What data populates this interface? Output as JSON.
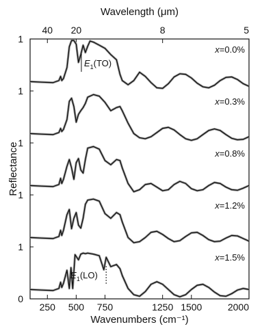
{
  "chart_data": {
    "type": "line",
    "title": "",
    "xlabel": "Wavenumbers (cm⁻¹)",
    "top_xlabel": "Wavelength (μm)",
    "ylabel": "Reflectance",
    "xlim": [
      100,
      2000
    ],
    "x_ticks": [
      250,
      500,
      750,
      1250,
      1500,
      2000
    ],
    "x_tick_labels": [
      "250",
      "500",
      "750",
      "1250",
      "1500",
      "2000"
    ],
    "top_ticks": [
      40,
      20,
      8,
      5
    ],
    "top_tick_labels": [
      "40",
      "20",
      "8",
      "5"
    ],
    "y_tick_labels": [
      "1",
      "1",
      "1",
      "1",
      "1",
      "0"
    ],
    "grid": false,
    "panels": [
      {
        "x_label": "x",
        "x_value": "=0.0%",
        "offset": 4,
        "x": [
          100,
          200,
          300,
          350,
          365,
          375,
          390,
          420,
          440,
          460,
          480,
          500,
          520,
          540,
          560,
          580,
          600,
          620,
          650,
          700,
          750,
          800,
          850,
          880,
          900,
          950,
          1000,
          1050,
          1100,
          1150,
          1200,
          1250,
          1300,
          1350,
          1400,
          1450,
          1500,
          1550,
          1600,
          1650,
          1700,
          1750,
          1800,
          1850,
          1900,
          1950,
          2000
        ],
        "values": [
          0.18,
          0.17,
          0.16,
          0.2,
          0.28,
          0.2,
          0.24,
          0.45,
          0.85,
          0.97,
          0.97,
          0.9,
          0.55,
          0.7,
          0.88,
          0.74,
          0.86,
          0.96,
          0.94,
          0.88,
          0.82,
          0.7,
          0.6,
          0.32,
          0.2,
          0.12,
          0.2,
          0.36,
          0.28,
          0.16,
          0.06,
          0.05,
          0.14,
          0.27,
          0.33,
          0.32,
          0.25,
          0.15,
          0.08,
          0.06,
          0.11,
          0.2,
          0.26,
          0.27,
          0.22,
          0.14,
          0.09
        ]
      },
      {
        "x_label": "x",
        "x_value": "=0.3%",
        "offset": 3,
        "x": [
          100,
          200,
          300,
          350,
          365,
          375,
          390,
          420,
          440,
          460,
          480,
          500,
          520,
          540,
          560,
          580,
          600,
          650,
          700,
          750,
          800,
          850,
          880,
          900,
          950,
          1000,
          1050,
          1100,
          1150,
          1200,
          1250,
          1300,
          1350,
          1400,
          1450,
          1500,
          1550,
          1600,
          1650,
          1700,
          1750,
          1800,
          1850,
          1900,
          1950,
          2000
        ],
        "values": [
          0.18,
          0.17,
          0.16,
          0.2,
          0.28,
          0.22,
          0.26,
          0.45,
          0.8,
          0.86,
          0.7,
          0.4,
          0.55,
          0.62,
          0.68,
          0.76,
          0.88,
          0.93,
          0.9,
          0.78,
          0.62,
          0.68,
          0.7,
          0.62,
          0.38,
          0.18,
          0.1,
          0.08,
          0.12,
          0.2,
          0.28,
          0.3,
          0.25,
          0.16,
          0.08,
          0.05,
          0.08,
          0.16,
          0.24,
          0.27,
          0.24,
          0.16,
          0.09,
          0.06,
          0.07,
          0.12
        ]
      },
      {
        "x_label": "x",
        "x_value": "=0.8%",
        "offset": 2,
        "x": [
          100,
          200,
          300,
          350,
          365,
          375,
          390,
          420,
          440,
          460,
          480,
          500,
          520,
          540,
          560,
          580,
          600,
          650,
          700,
          750,
          800,
          850,
          880,
          900,
          950,
          1000,
          1050,
          1100,
          1150,
          1200,
          1250,
          1300,
          1350,
          1400,
          1450,
          1500,
          1550,
          1600,
          1650,
          1700,
          1750,
          1800,
          1850,
          1900,
          1950,
          2000
        ],
        "values": [
          0.18,
          0.17,
          0.16,
          0.2,
          0.32,
          0.22,
          0.3,
          0.55,
          0.68,
          0.52,
          0.3,
          0.62,
          0.7,
          0.48,
          0.42,
          0.68,
          0.9,
          0.93,
          0.88,
          0.66,
          0.58,
          0.68,
          0.66,
          0.52,
          0.22,
          0.06,
          0.1,
          0.2,
          0.22,
          0.15,
          0.08,
          0.1,
          0.2,
          0.26,
          0.22,
          0.12,
          0.08,
          0.1,
          0.18,
          0.24,
          0.22,
          0.15,
          0.1,
          0.09,
          0.13,
          0.18
        ]
      },
      {
        "x_label": "x",
        "x_value": "=1.2%",
        "offset": 1,
        "x": [
          100,
          200,
          300,
          350,
          365,
          375,
          390,
          420,
          440,
          460,
          480,
          500,
          520,
          540,
          560,
          580,
          600,
          650,
          700,
          750,
          800,
          850,
          880,
          900,
          950,
          1000,
          1050,
          1100,
          1150,
          1200,
          1250,
          1300,
          1350,
          1400,
          1450,
          1500,
          1550,
          1600,
          1650,
          1700,
          1750,
          1800,
          1850,
          1900,
          1950,
          2000
        ],
        "values": [
          0.18,
          0.17,
          0.16,
          0.2,
          0.32,
          0.22,
          0.32,
          0.62,
          0.72,
          0.35,
          0.55,
          0.66,
          0.42,
          0.36,
          0.55,
          0.82,
          0.9,
          0.92,
          0.88,
          0.64,
          0.55,
          0.66,
          0.62,
          0.48,
          0.18,
          0.08,
          0.1,
          0.18,
          0.28,
          0.3,
          0.24,
          0.16,
          0.1,
          0.12,
          0.2,
          0.27,
          0.28,
          0.22,
          0.14,
          0.1,
          0.11,
          0.17,
          0.22,
          0.21,
          0.16,
          0.11
        ]
      },
      {
        "x_label": "x",
        "x_value": "=1.5%",
        "offset": 0,
        "x": [
          100,
          200,
          300,
          350,
          365,
          375,
          390,
          420,
          440,
          455,
          470,
          490,
          520,
          540,
          560,
          580,
          600,
          650,
          700,
          740,
          760,
          800,
          850,
          880,
          900,
          950,
          1000,
          1050,
          1100,
          1150,
          1200,
          1250,
          1300,
          1350,
          1400,
          1450,
          1500,
          1550,
          1600,
          1650,
          1700,
          1750,
          1800,
          1850,
          1900,
          1950,
          2000
        ],
        "values": [
          0.18,
          0.17,
          0.16,
          0.2,
          0.32,
          0.22,
          0.3,
          0.55,
          0.2,
          0.6,
          0.2,
          0.85,
          0.75,
          0.86,
          0.88,
          0.87,
          0.88,
          0.86,
          0.83,
          0.56,
          0.8,
          0.62,
          0.66,
          0.58,
          0.45,
          0.2,
          0.08,
          0.05,
          0.14,
          0.28,
          0.33,
          0.28,
          0.18,
          0.08,
          0.04,
          0.08,
          0.18,
          0.26,
          0.28,
          0.22,
          0.13,
          0.06,
          0.05,
          0.1,
          0.17,
          0.2,
          0.18
        ]
      }
    ],
    "annotations": [
      {
        "name": "E1-TO",
        "base": "E",
        "sub": "1",
        "rest": "(TO)",
        "x": 545,
        "panel": 0
      },
      {
        "name": "E1-LO",
        "base": "E",
        "sub": "1",
        "rest": "(LO)",
        "x": 760,
        "panel": 4
      }
    ],
    "colors": {
      "measured": "#9a9a9a",
      "fit": "#111111"
    }
  }
}
